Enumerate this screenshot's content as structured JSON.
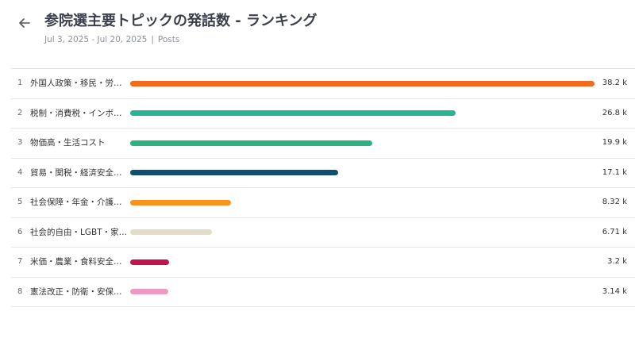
{
  "header": {
    "title": "参院選主要トピックの発話数 - ランキング",
    "date_range": "Jul 3, 2025 - Jul 20, 2025",
    "separator": "|",
    "metric": "Posts",
    "back_icon": "arrow-left-icon"
  },
  "chart_data": {
    "type": "bar",
    "orientation": "horizontal",
    "title": "参院選主要トピックの発話数 - ランキング",
    "max_value": 38200,
    "rows": [
      {
        "rank": "1",
        "label": "外国人政策・移民・労働力",
        "value": 38200,
        "value_label": "38.2 k",
        "color": "#f26b1d"
      },
      {
        "rank": "2",
        "label": "税制・消費税・インボイ…",
        "value": 26800,
        "value_label": "26.8 k",
        "color": "#2ab394"
      },
      {
        "rank": "3",
        "label": "物価高・生活コスト",
        "value": 19900,
        "value_label": "19.9 k",
        "color": "#2ab37e"
      },
      {
        "rank": "4",
        "label": "貿易・関税・経済安全保障",
        "value": 17100,
        "value_label": "17.1 k",
        "color": "#134d6b"
      },
      {
        "rank": "5",
        "label": "社会保障・年金・介護・…",
        "value": 8320,
        "value_label": "8.32 k",
        "color": "#f5951f"
      },
      {
        "rank": "6",
        "label": "社会的自由・LGBT・家族…",
        "value": 6710,
        "value_label": "6.71 k",
        "color": "#e2dcc8"
      },
      {
        "rank": "7",
        "label": "米価・農業・食料安全保障",
        "value": 3200,
        "value_label": "3.2 k",
        "color": "#c2164a"
      },
      {
        "rank": "8",
        "label": "憲法改正・防衛・安保・…",
        "value": 3140,
        "value_label": "3.14 k",
        "color": "#ec9ac3"
      }
    ]
  }
}
